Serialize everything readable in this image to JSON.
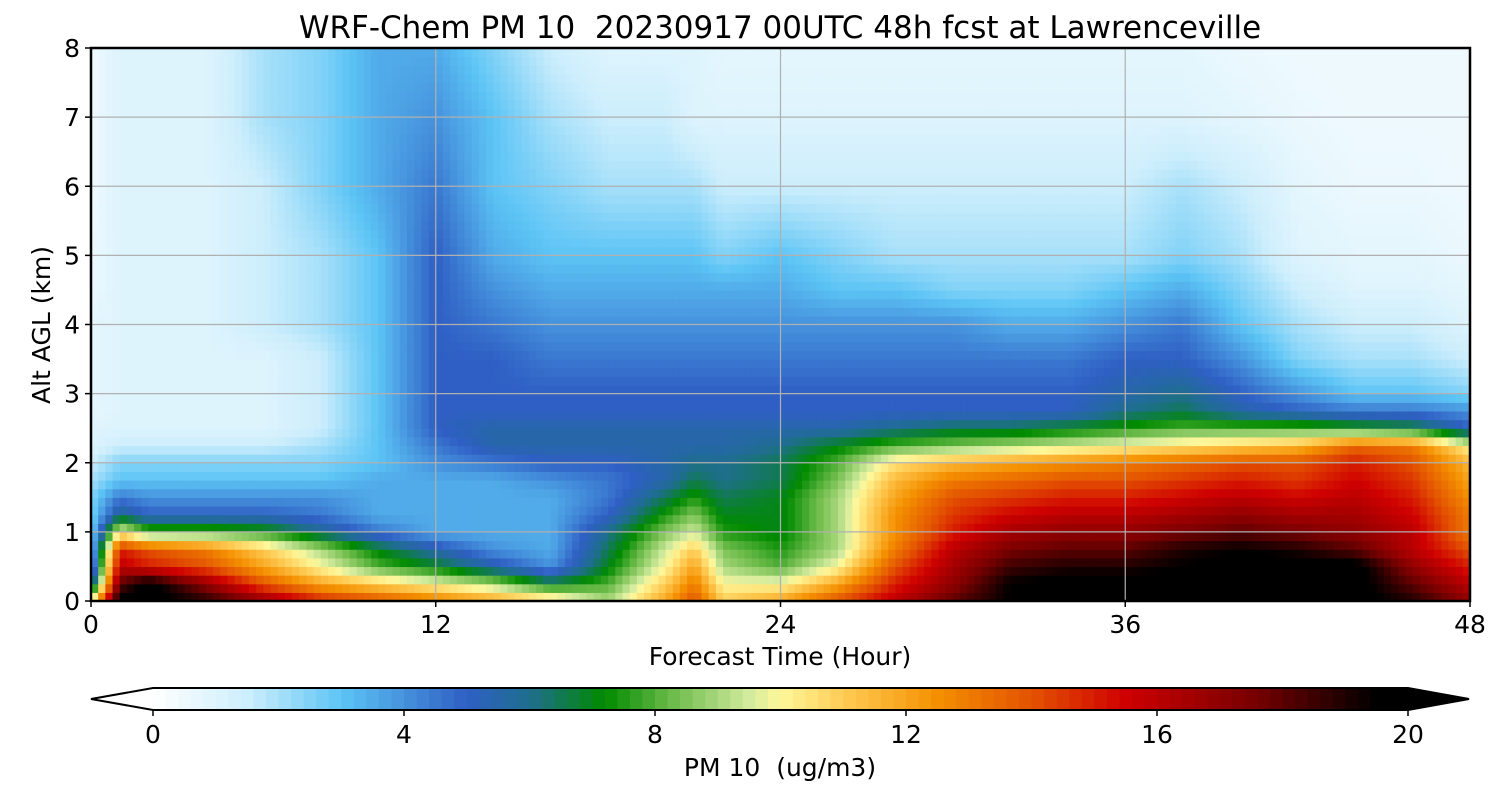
{
  "chart_data": {
    "type": "heatmap",
    "title": "WRF-Chem PM 10  20230917 00UTC 48h fcst at Lawrenceville",
    "xlabel": "Forecast Time (Hour)",
    "ylabel": "Alt AGL (km)",
    "xlim": [
      0,
      48
    ],
    "ylim": [
      0,
      8
    ],
    "x_ticks": [
      0,
      12,
      24,
      36,
      48
    ],
    "y_ticks": [
      0,
      1,
      2,
      3,
      4,
      5,
      6,
      7,
      8
    ],
    "grid": true,
    "colorbar": {
      "label": "PM 10  (ug/m3)",
      "orientation": "horizontal",
      "location": "bottom",
      "range": [
        0,
        20
      ],
      "ticks": [
        0,
        4,
        8,
        12,
        16,
        20
      ],
      "extend": "both",
      "colormap": [
        {
          "v": 0,
          "color": "#ffffff"
        },
        {
          "v": 1.5,
          "color": "#cdeefc"
        },
        {
          "v": 3,
          "color": "#5cc4f5"
        },
        {
          "v": 5,
          "color": "#2f5fc4"
        },
        {
          "v": 6,
          "color": "#1e6e8e"
        },
        {
          "v": 7.2,
          "color": "#008a00"
        },
        {
          "v": 8.2,
          "color": "#66b845"
        },
        {
          "v": 9.5,
          "color": "#d2eb9e"
        },
        {
          "v": 10,
          "color": "#fff79a"
        },
        {
          "v": 11,
          "color": "#ffcc55"
        },
        {
          "v": 12.5,
          "color": "#f49000"
        },
        {
          "v": 14,
          "color": "#e35200"
        },
        {
          "v": 15.5,
          "color": "#cf0000"
        },
        {
          "v": 17.5,
          "color": "#7a0000"
        },
        {
          "v": 19.5,
          "color": "#000000"
        }
      ]
    },
    "field": {
      "x": [
        0,
        1,
        2,
        4,
        6,
        8,
        10,
        12,
        14,
        16,
        18,
        20,
        21,
        22,
        24,
        26,
        28,
        30,
        32,
        34,
        36,
        38,
        40,
        42,
        44,
        46,
        48
      ],
      "y": [
        0,
        0.25,
        0.5,
        0.75,
        1,
        1.25,
        1.5,
        1.75,
        2,
        2.25,
        2.5,
        2.75,
        3,
        3.5,
        4,
        4.5,
        5,
        6,
        7,
        8
      ],
      "values": [
        [
          10,
          20,
          20,
          19,
          17,
          15,
          14,
          13,
          12,
          11,
          9,
          12,
          14,
          11,
          12,
          14,
          16,
          18,
          19.5,
          20,
          20,
          20,
          20,
          20,
          20,
          19,
          17
        ],
        [
          5,
          18,
          20,
          17,
          14,
          12,
          11,
          10,
          9,
          7,
          8,
          11,
          13,
          10,
          10,
          12,
          15,
          17,
          19.5,
          20,
          20,
          20,
          20,
          20,
          20,
          18,
          16
        ],
        [
          3,
          16,
          15,
          14,
          12,
          10,
          8,
          7,
          5.5,
          4,
          7,
          10,
          12,
          9,
          8,
          10,
          14,
          16.5,
          18.5,
          19,
          19,
          19.5,
          20,
          20,
          20,
          17,
          15
        ],
        [
          2.5,
          15,
          14,
          13,
          11,
          9,
          7,
          5.5,
          4,
          3.5,
          6.5,
          9.5,
          11,
          8.5,
          7.5,
          9,
          13,
          16,
          17.5,
          18,
          18,
          19,
          19.5,
          19,
          18,
          16,
          14
        ],
        [
          2.5,
          10,
          8,
          8,
          7.5,
          6,
          4.5,
          3.5,
          3.5,
          3.5,
          6,
          8.5,
          9.5,
          7.5,
          7,
          9,
          12.5,
          15,
          16.5,
          17,
          17,
          17.5,
          18,
          17.5,
          17,
          16,
          13
        ],
        [
          2.5,
          6,
          5,
          5,
          5,
          4.5,
          3.5,
          3.5,
          3.5,
          3.5,
          5,
          7.5,
          8.5,
          7,
          7,
          9,
          12.5,
          14.5,
          15.5,
          16,
          16,
          16.5,
          17,
          16.5,
          16.5,
          15.5,
          13
        ],
        [
          2.5,
          4.5,
          4,
          4,
          4,
          4,
          3.5,
          3.5,
          3.5,
          3.5,
          4.5,
          6.5,
          7.5,
          6.5,
          7,
          9,
          12,
          14,
          14.5,
          15,
          15,
          15.5,
          16,
          15.5,
          16,
          15,
          12.5
        ],
        [
          2,
          3,
          3,
          3,
          3,
          3,
          3.5,
          3.5,
          3.5,
          4,
          4.5,
          5.5,
          6.5,
          6,
          6.5,
          8.5,
          11.5,
          13,
          13.5,
          14,
          14,
          14.5,
          15,
          14.5,
          15.5,
          14.5,
          12
        ],
        [
          1.5,
          2.5,
          2.5,
          2.5,
          2.5,
          2.5,
          3,
          4,
          4.5,
          5,
          5,
          5.5,
          6,
          6,
          6.5,
          8,
          10.5,
          11.5,
          12,
          12.5,
          13,
          13.5,
          14,
          14,
          15,
          14,
          11.5
        ],
        [
          1,
          1.5,
          1.5,
          1.5,
          1.5,
          2,
          3,
          4.5,
          5.5,
          5.5,
          5.5,
          5.5,
          5.5,
          5.5,
          6,
          7,
          8,
          8.5,
          9,
          9.5,
          10,
          10.5,
          11,
          11.5,
          13.5,
          13,
          10
        ],
        [
          1,
          1,
          1,
          1,
          1,
          1.5,
          3,
          5,
          5.5,
          5.5,
          5.5,
          5.5,
          5.5,
          5.5,
          5.5,
          5.5,
          6,
          6.5,
          6.5,
          7,
          7.5,
          8,
          8,
          8,
          7.5,
          7,
          5
        ],
        [
          0.8,
          1,
          1,
          1,
          1,
          1.5,
          3,
          5,
          5,
          5,
          5,
          5,
          5,
          5,
          5,
          5,
          5,
          5,
          5,
          5,
          6,
          6.5,
          5.5,
          5,
          4.5,
          4.5,
          4
        ],
        [
          0.8,
          1,
          1,
          1,
          1,
          1.5,
          3,
          5,
          5,
          5,
          5,
          5,
          5,
          5,
          5,
          5,
          5,
          5,
          5,
          5,
          5.5,
          6,
          5,
          4,
          3,
          3,
          2.5
        ],
        [
          0.8,
          1,
          1,
          1,
          1,
          1.5,
          3,
          5,
          5,
          4.5,
          4.5,
          4.5,
          4.5,
          4.5,
          4.5,
          4.5,
          4.5,
          4.5,
          4.5,
          4.5,
          5,
          5,
          4,
          2.5,
          2,
          2,
          1.5
        ],
        [
          0.8,
          1,
          1,
          1,
          1.5,
          2,
          3,
          5,
          4.5,
          4,
          4,
          4,
          4,
          4,
          4,
          4,
          4,
          4,
          3.5,
          3.5,
          4,
          4.5,
          3,
          2,
          1.5,
          1.5,
          1
        ],
        [
          0.6,
          1,
          1,
          1,
          1.5,
          2,
          3,
          5,
          4,
          3.5,
          3.5,
          3.5,
          3.5,
          3.5,
          3.5,
          3,
          3,
          2.5,
          2.5,
          2.5,
          3,
          3.5,
          2.5,
          1.5,
          1,
          1,
          0.8
        ],
        [
          0.6,
          1,
          1,
          1,
          1.5,
          2,
          3,
          5,
          3.5,
          3,
          3,
          3,
          3,
          2.5,
          3,
          2.5,
          2,
          2,
          2,
          2,
          2,
          2.5,
          2,
          1,
          0.8,
          0.8,
          0.6
        ],
        [
          0.5,
          1,
          1,
          1,
          1.5,
          2.5,
          3.5,
          4.5,
          3,
          2.5,
          2,
          2,
          2,
          1.5,
          1.5,
          1.5,
          1.5,
          1.5,
          1.5,
          1.5,
          1.5,
          2,
          1.5,
          0.8,
          0.6,
          0.6,
          0.5
        ],
        [
          0.5,
          1,
          1,
          1,
          2,
          2.5,
          3.5,
          4,
          3,
          2,
          1.5,
          1.5,
          1,
          1,
          1,
          1,
          1,
          1,
          1,
          1,
          1,
          1,
          0.8,
          0.6,
          0.5,
          0.5,
          0.5
        ],
        [
          0.5,
          1,
          1,
          1,
          2,
          2.5,
          3.5,
          3.5,
          2.5,
          1.5,
          1,
          1,
          1,
          0.8,
          0.8,
          0.8,
          0.8,
          0.8,
          0.8,
          0.8,
          0.8,
          0.8,
          0.6,
          0.5,
          0.5,
          0.5,
          0.5
        ]
      ]
    }
  }
}
